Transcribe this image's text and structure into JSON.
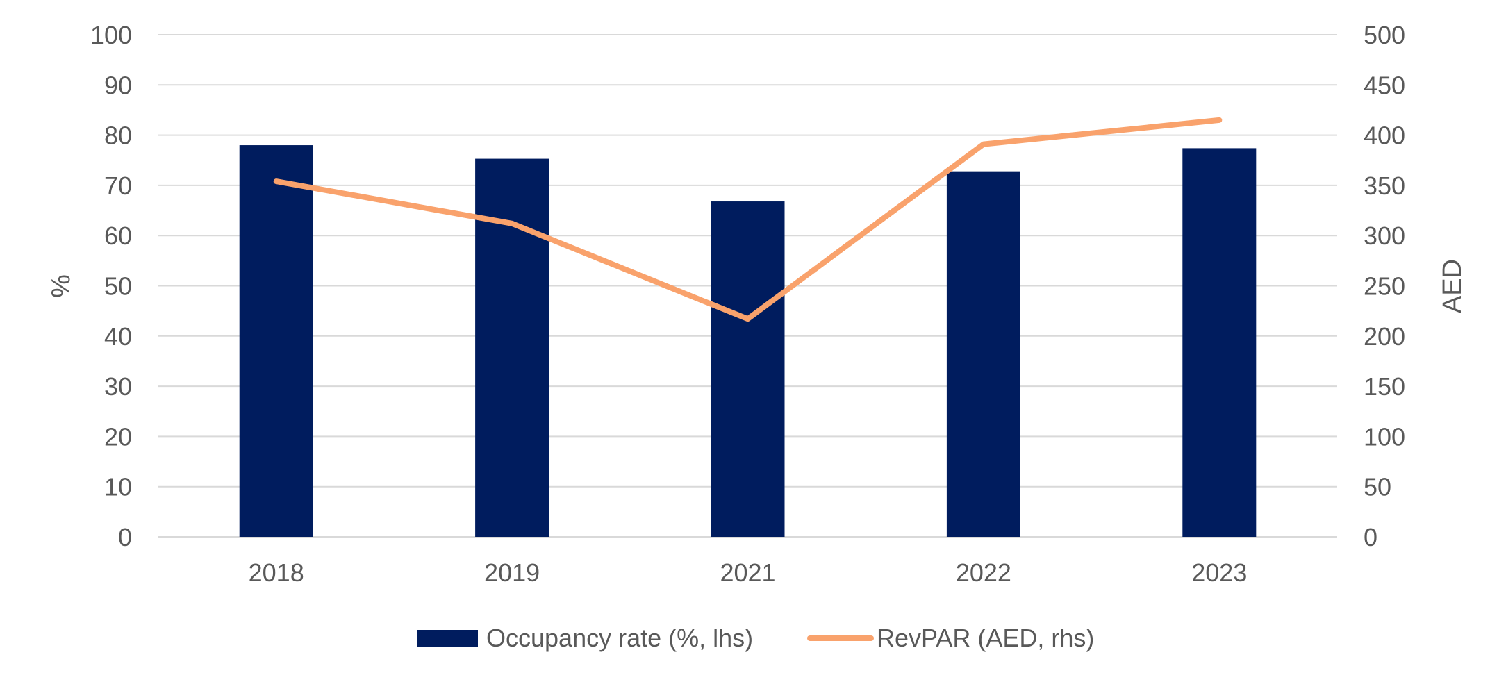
{
  "chart_data": {
    "type": "bar",
    "categories": [
      "2018",
      "2019",
      "2021",
      "2022",
      "2023"
    ],
    "series": [
      {
        "name": "Occupancy rate (%, lhs)",
        "type": "bar",
        "axis": "left",
        "values": [
          78,
          75.3,
          66.8,
          72.8,
          77.4
        ],
        "color": "#001c5e"
      },
      {
        "name": "RevPAR (AED, rhs)",
        "type": "line",
        "axis": "right",
        "values": [
          354,
          312,
          217,
          391,
          415
        ],
        "color": "#f9a26c"
      }
    ],
    "ylabel": "%",
    "y2label": "AED",
    "ylim": [
      0,
      100
    ],
    "y2lim": [
      0,
      500
    ],
    "yticks": [
      "0",
      "10",
      "20",
      "30",
      "40",
      "50",
      "60",
      "70",
      "80",
      "90",
      "100"
    ],
    "y2ticks": [
      "0",
      "50",
      "100",
      "150",
      "200",
      "250",
      "300",
      "350",
      "400",
      "450",
      "500"
    ],
    "grid": true,
    "legend_position": "bottom"
  }
}
